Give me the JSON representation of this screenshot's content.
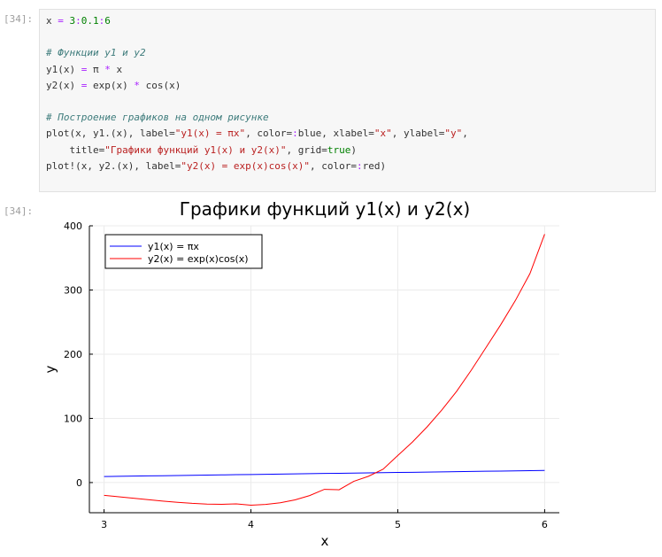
{
  "cell_in": {
    "prompt": "[34]:",
    "lines": [
      [
        [
          "t",
          "x "
        ],
        [
          "op",
          "="
        ],
        [
          "t",
          " "
        ],
        [
          "num",
          "3"
        ],
        [
          "op",
          ":"
        ],
        [
          "num",
          "0.1"
        ],
        [
          "op",
          ":"
        ],
        [
          "num",
          "6"
        ]
      ],
      [],
      [
        [
          "cm",
          "# Функции y1 и y2"
        ]
      ],
      [
        [
          "t",
          "y1(x) "
        ],
        [
          "op",
          "="
        ],
        [
          "t",
          " π "
        ],
        [
          "op",
          "*"
        ],
        [
          "t",
          " x"
        ]
      ],
      [
        [
          "t",
          "y2(x) "
        ],
        [
          "op",
          "="
        ],
        [
          "t",
          " exp(x) "
        ],
        [
          "op",
          "*"
        ],
        [
          "t",
          " cos(x)"
        ]
      ],
      [],
      [
        [
          "cm",
          "# Построение графиков на одном рисунке"
        ]
      ],
      [
        [
          "t",
          "plot(x, y1.(x), label="
        ],
        [
          "str",
          "\"y1(x) = πx\""
        ],
        [
          "t",
          ", color="
        ],
        [
          "op",
          ":"
        ],
        [
          "t",
          "blue, xlabel="
        ],
        [
          "str",
          "\"x\""
        ],
        [
          "t",
          ", ylabel="
        ],
        [
          "str",
          "\"y\""
        ],
        [
          "t",
          ","
        ]
      ],
      [
        [
          "t",
          "    title="
        ],
        [
          "str",
          "\"Графики функций y1(x) и y2(x)\""
        ],
        [
          "t",
          ", grid="
        ],
        [
          "kw",
          "true"
        ],
        [
          "t",
          ")"
        ]
      ],
      [
        [
          "t",
          "plot!(x, y2.(x), label="
        ],
        [
          "str",
          "\"y2(x) = exp(x)cos(x)\""
        ],
        [
          "t",
          ", color="
        ],
        [
          "op",
          ":"
        ],
        [
          "t",
          "red)"
        ]
      ]
    ]
  },
  "cell_out": {
    "prompt": "[34]:"
  },
  "chart_data": {
    "type": "line",
    "title": "Графики функций y1(x) и y2(x)",
    "xlabel": "x",
    "ylabel": "y",
    "xlim": [
      2.9,
      6.1
    ],
    "ylim": [
      -47,
      400
    ],
    "xticks": [
      3,
      4,
      5,
      6
    ],
    "yticks": [
      0,
      100,
      200,
      300,
      400
    ],
    "grid": true,
    "legend_position": "top-left",
    "x": [
      3.0,
      3.1,
      3.2,
      3.3,
      3.4,
      3.5,
      3.6,
      3.7,
      3.8,
      3.9,
      4.0,
      4.1,
      4.2,
      4.3,
      4.4,
      4.5,
      4.6,
      4.7,
      4.8,
      4.9,
      5.0,
      5.1,
      5.2,
      5.3,
      5.4,
      5.5,
      5.6,
      5.7,
      5.8,
      5.9,
      6.0
    ],
    "series": [
      {
        "name": "y1(x) = πx",
        "color": "#0000ff",
        "values": [
          9.42,
          9.74,
          10.05,
          10.37,
          10.68,
          11.0,
          11.31,
          11.62,
          11.94,
          12.25,
          12.57,
          12.88,
          13.19,
          13.51,
          13.82,
          14.14,
          14.45,
          14.77,
          15.08,
          15.39,
          15.71,
          16.02,
          16.34,
          16.65,
          16.96,
          17.28,
          17.59,
          17.91,
          18.22,
          18.54,
          18.85
        ]
      },
      {
        "name": "y2(x) = exp(x)cos(x)",
        "color": "#ff0000",
        "values": [
          -19.88,
          -22.09,
          -24.38,
          -26.66,
          -28.85,
          -30.82,
          -32.42,
          -33.49,
          -33.83,
          -33.22,
          -35.32,
          -34.14,
          -31.45,
          -26.93,
          -20.24,
          -10.54,
          -11.23,
          1.94,
          9.77,
          20.86,
          42.1,
          63.24,
          86.84,
          113.06,
          141.91,
          174.93,
          210.1,
          245.56,
          283.35,
          325.63,
          387.0
        ]
      }
    ]
  }
}
